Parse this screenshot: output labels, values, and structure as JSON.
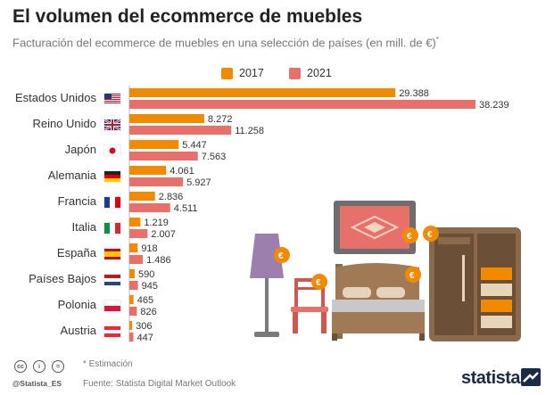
{
  "header": {
    "title": "El volumen del ecommerce de muebles",
    "subtitle": "Facturación del ecommerce de muebles en una selección de países (en mill. de €)",
    "subtitle_mark": "*"
  },
  "legend": [
    {
      "label": "2017",
      "color": "#f28a00"
    },
    {
      "label": "2021",
      "color": "#e8706a"
    }
  ],
  "chart_data": {
    "type": "bar",
    "orientation": "horizontal",
    "title": "El volumen del ecommerce de muebles",
    "subtitle": "Facturación del ecommerce de muebles en una selección de países (en mill. de €)*",
    "categories": [
      "Estados Unidos",
      "Reino Unido",
      "Japón",
      "Alemania",
      "Francia",
      "Italia",
      "España",
      "Países Bajos",
      "Polonia",
      "Austria"
    ],
    "flags": [
      "flag-us-icon",
      "flag-uk-icon",
      "flag-jp-icon",
      "flag-de-icon",
      "flag-fr-icon",
      "flag-it-icon",
      "flag-es-icon",
      "flag-nl-icon",
      "flag-pl-icon",
      "flag-at-icon"
    ],
    "series": [
      {
        "name": "2017",
        "color": "#f28a00",
        "values": [
          29388,
          8272,
          5447,
          4061,
          2836,
          1219,
          918,
          590,
          465,
          306
        ],
        "labels": [
          "29.388",
          "8.272",
          "5.447",
          "4.061",
          "2.836",
          "1.219",
          "918",
          "590",
          "465",
          "306"
        ]
      },
      {
        "name": "2021",
        "color": "#e8706a",
        "values": [
          38239,
          11258,
          7563,
          5927,
          4511,
          2007,
          1486,
          945,
          826,
          447
        ],
        "labels": [
          "38.239",
          "11.258",
          "7.563",
          "5.927",
          "4.511",
          "2.007",
          "1.486",
          "945",
          "826",
          "447"
        ]
      }
    ],
    "xlim": [
      0,
      38239
    ],
    "grid": false,
    "legend_position": "top"
  },
  "footer": {
    "note": "* Estimación",
    "source": "Fuente: Statista Digital Market Outlook",
    "handle": "@Statista_ES",
    "brand": "statista",
    "cc_icons": [
      "cc",
      "i",
      "="
    ]
  }
}
